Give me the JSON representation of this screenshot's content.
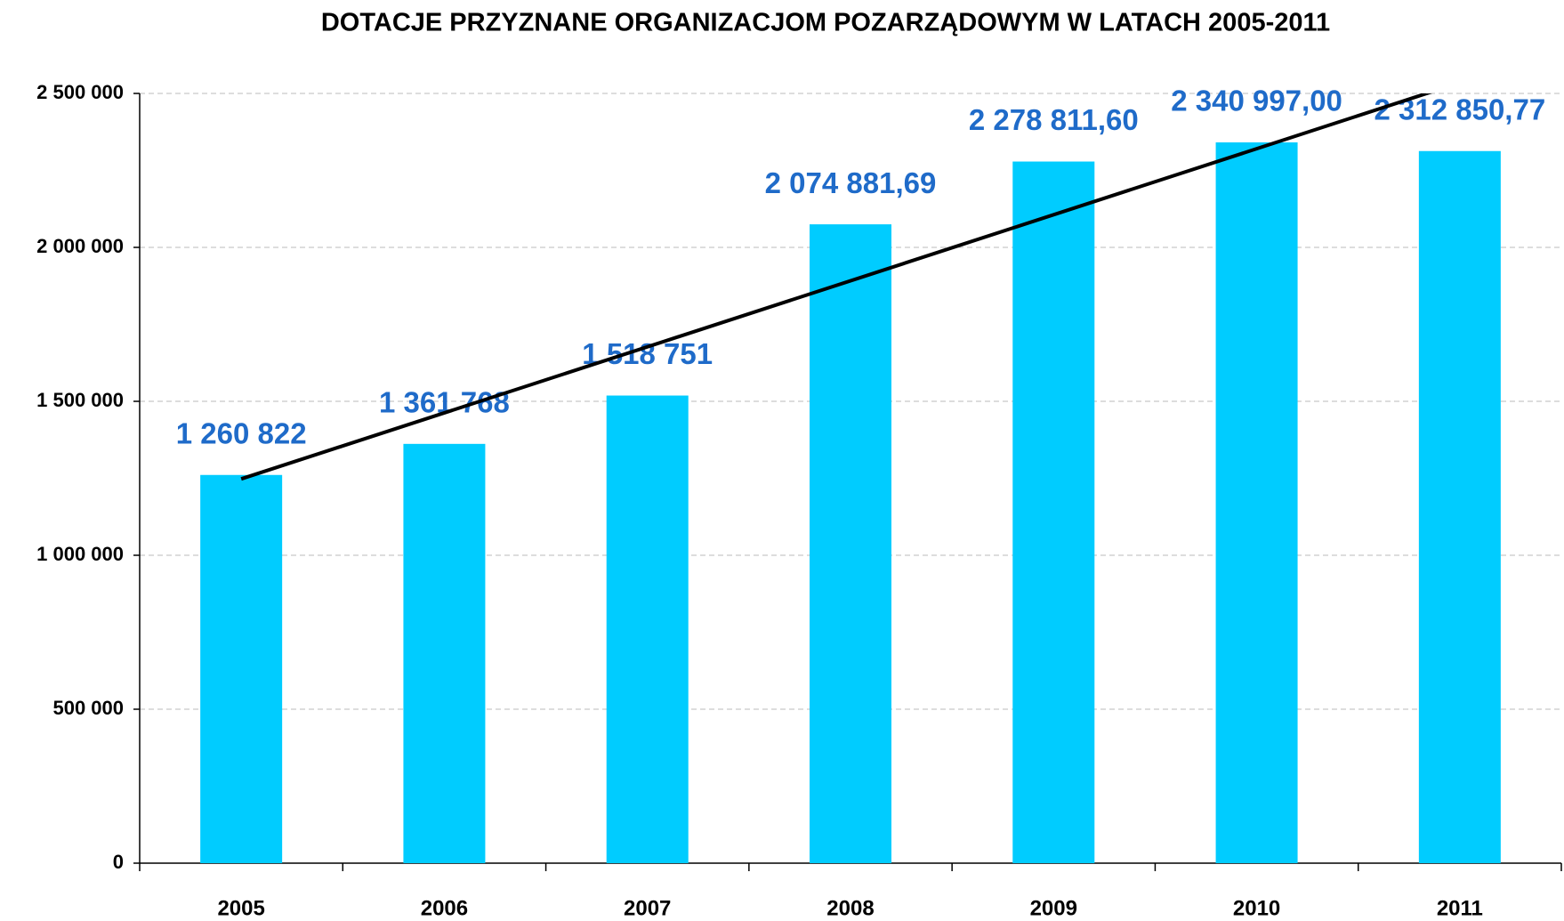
{
  "chart_data": {
    "type": "bar",
    "title": "DOTACJE PRZYZNANE ORGANIZACJOM POZARZĄDOWYM W LATACH 2005-2011",
    "categories": [
      "2005",
      "2006",
      "2007",
      "2008",
      "2009",
      "2010",
      "2011"
    ],
    "values": [
      1260822,
      1361768,
      1518751,
      2074881.69,
      2278811.6,
      2340997.0,
      2312850.77
    ],
    "value_labels": [
      "1 260 822",
      "1 361 768",
      "1 518 751",
      "2 074 881,69",
      "2 278 811,60",
      "2 340 997,00",
      "2 312 850,77"
    ],
    "color": "#00ccff",
    "label_color": "#1f6bc9",
    "ylim": [
      0,
      2500000
    ],
    "yticks": [
      0,
      {
        "value": 500000,
        "label": "500 000"
      },
      {
        "value": 1000000,
        "label": "1 000 000"
      },
      {
        "value": 1500000,
        "label": "1 500 000"
      },
      {
        "value": 2000000,
        "label": "2 000 000"
      },
      {
        "value": 2500000,
        "label": "2 500 000"
      }
    ],
    "grid": true,
    "trend_line": {
      "color": "#000000",
      "start": 1248000,
      "end": 2535000
    }
  }
}
